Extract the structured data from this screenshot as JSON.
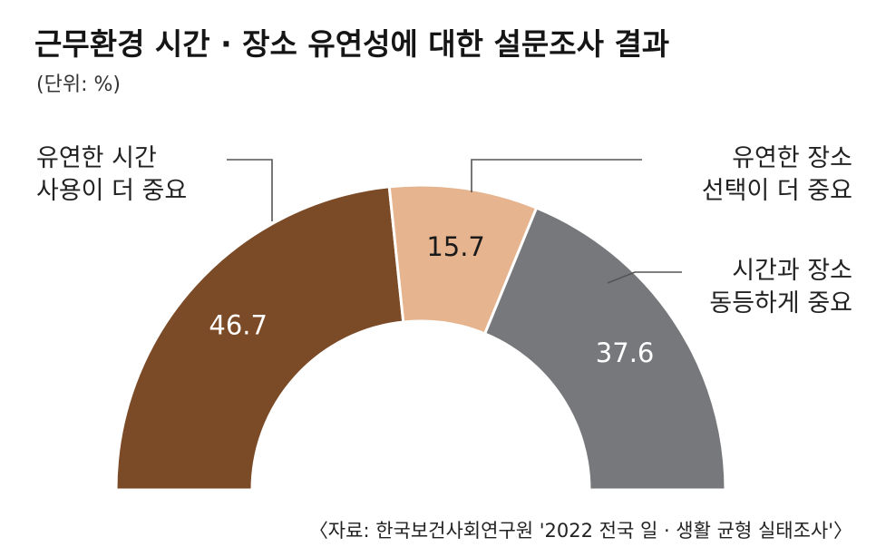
{
  "chart_data": {
    "type": "pie",
    "title": "근무환경 시간 · 장소 유연성에 대한 설문조사 결과",
    "unit": "(단위: %)",
    "source": "〈자료: 한국보건사회연구원 '2022 전국 일 · 생활 균형 실태조사'〉",
    "slices": [
      {
        "label_lines": [
          "유연한 시간",
          "사용이 더 중요"
        ],
        "value": 46.7,
        "value_label": "46.7",
        "color": "#7b4a26",
        "text_color": "#ffffff"
      },
      {
        "label_lines": [
          "유연한 장소",
          "선택이 더 중요"
        ],
        "value": 15.7,
        "value_label": "15.7",
        "color": "#e6b48f",
        "text_color": "#1a1a1a"
      },
      {
        "label_lines": [
          "시간과 장소",
          "동등하게 중요"
        ],
        "value": 37.6,
        "value_label": "37.6",
        "color": "#76787b",
        "text_color": "#ffffff"
      }
    ]
  }
}
